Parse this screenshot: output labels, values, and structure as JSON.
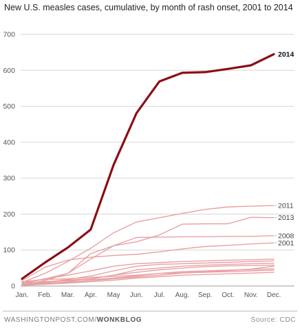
{
  "title": "New U.S. measles cases, cumulative, by month of rash onset, 2001 to 2014",
  "footer": {
    "publisher": "WASHINGTONPOST.COM/",
    "section": "WONKBLOG",
    "source": "Source: CDC"
  },
  "colors": {
    "highlight": "#8b0e14",
    "other_years": "#e8a0a3",
    "gridline": "#d6d6d6",
    "tick_text": "#555555"
  },
  "chart_data": {
    "type": "line",
    "title": "New U.S. measles cases, cumulative, by month of rash onset, 2001 to 2014",
    "xlabel": "",
    "ylabel": "",
    "x": [
      "Jan.",
      "Feb.",
      "Mar.",
      "Apr.",
      "May",
      "Jun.",
      "Jul.",
      "Aug.",
      "Sep.",
      "Oct.",
      "Nov.",
      "Dec."
    ],
    "ylim": [
      0,
      700
    ],
    "yticks": [
      0,
      100,
      200,
      300,
      400,
      500,
      600,
      700
    ],
    "grid": true,
    "highlight_series": "2014",
    "series": [
      {
        "name": "2014",
        "labeled": true,
        "values": [
          20,
          65,
          107,
          157,
          337,
          481,
          569,
          593,
          595,
          604,
          614,
          645
        ]
      },
      {
        "name": "2011",
        "labeled": true,
        "values": [
          10,
          35,
          68,
          105,
          148,
          178,
          190,
          202,
          213,
          220,
          222,
          224
        ]
      },
      {
        "name": "2013",
        "labeled": true,
        "values": [
          5,
          20,
          35,
          90,
          112,
          123,
          142,
          172,
          173,
          173,
          191,
          190
        ]
      },
      {
        "name": "2008",
        "labeled": true,
        "values": [
          3,
          15,
          35,
          75,
          112,
          135,
          136,
          137,
          137,
          138,
          138,
          140
        ]
      },
      {
        "name": "2001",
        "labeled": true,
        "values": [
          15,
          52,
          72,
          80,
          85,
          88,
          95,
          103,
          110,
          113,
          117,
          120
        ]
      },
      {
        "values": [
          8,
          20,
          30,
          42,
          55,
          62,
          65,
          68,
          70,
          72,
          73,
          75
        ]
      },
      {
        "values": [
          4,
          10,
          18,
          28,
          42,
          55,
          60,
          62,
          64,
          66,
          68,
          70
        ]
      },
      {
        "values": [
          6,
          12,
          16,
          20,
          30,
          45,
          50,
          55,
          58,
          60,
          62,
          63
        ]
      },
      {
        "values": [
          2,
          6,
          12,
          20,
          30,
          38,
          45,
          50,
          54,
          56,
          57,
          58
        ]
      },
      {
        "values": [
          5,
          10,
          15,
          18,
          22,
          28,
          35,
          40,
          42,
          44,
          46,
          48
        ]
      },
      {
        "values": [
          3,
          8,
          10,
          15,
          20,
          25,
          30,
          36,
          38,
          40,
          42,
          44
        ]
      },
      {
        "values": [
          2,
          5,
          8,
          12,
          16,
          22,
          26,
          30,
          32,
          34,
          36,
          38
        ]
      },
      {
        "values": [
          12,
          18,
          20,
          24,
          27,
          30,
          35,
          37,
          39,
          43,
          47,
          55
        ]
      }
    ]
  }
}
